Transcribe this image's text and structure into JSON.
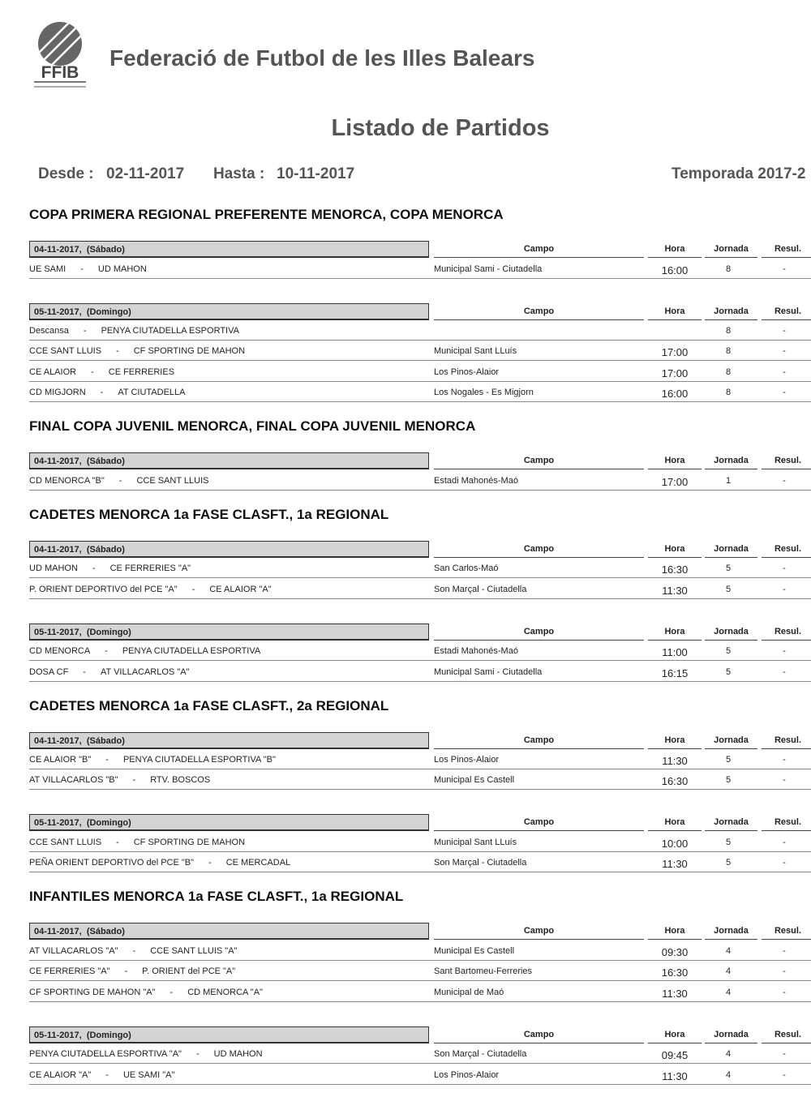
{
  "header": {
    "logo_text": "FFIB",
    "organization": "Federació de Futbol de les Illes Balears",
    "title": "Listado de Partidos",
    "desde_label": "Desde :",
    "desde": "02-11-2017",
    "hasta_label": "Hasta :",
    "hasta": "10-11-2017",
    "temporada": "Temporada 2017-2"
  },
  "columns": {
    "campo": "Campo",
    "hora": "Hora",
    "jornada": "Jornada",
    "resul": "Resul."
  },
  "match_separator": "-",
  "sections": [
    {
      "title": "COPA PRIMERA REGIONAL PREFERENTE MENORCA, COPA MENORCA",
      "days": [
        {
          "date": "04-11-2017,  (Sábado)",
          "matches": [
            {
              "home": "UE SAMI",
              "away": "UD MAHON",
              "campo": "Municipal Sami - Ciutadella",
              "hora": "16:00",
              "jornada": 8,
              "resul": "-"
            }
          ]
        },
        {
          "date": "05-11-2017,  (Domingo)",
          "matches": [
            {
              "home": "Descansa",
              "away": "PENYA CIUTADELLA ESPORTIVA",
              "jornada": 8,
              "resul": "-"
            },
            {
              "home": "CCE SANT LLUIS",
              "away": "CF SPORTING DE MAHON",
              "campo": "Municipal Sant LLuís",
              "hora": "17:00",
              "jornada": 8,
              "resul": "-"
            },
            {
              "home": "CE ALAIOR",
              "away": "CE FERRERIES",
              "campo": "Los Pinos-Alaior",
              "hora": "17:00",
              "jornada": 8,
              "resul": "-"
            },
            {
              "home": "CD MIGJORN",
              "away": "AT CIUTADELLA",
              "campo": "Los Nogales - Es Migjorn",
              "hora": "16:00",
              "jornada": 8,
              "resul": "-"
            }
          ]
        }
      ]
    },
    {
      "title": "FINAL COPA JUVENIL MENORCA, FINAL COPA JUVENIL MENORCA",
      "days": [
        {
          "date": "04-11-2017,  (Sábado)",
          "matches": [
            {
              "home": "CD MENORCA \"B\"",
              "away": "CCE SANT LLUIS",
              "campo": "Estadi Mahonés-Maó",
              "hora": "17:00",
              "jornada": 1,
              "resul": "-"
            }
          ]
        }
      ]
    },
    {
      "title": "CADETES MENORCA 1a FASE CLASFT., 1a REGIONAL",
      "days": [
        {
          "date": "04-11-2017,  (Sábado)",
          "matches": [
            {
              "home": "UD MAHON",
              "away": "CE FERRERIES \"A\"",
              "campo": "San Carlos-Maó",
              "hora": "16:30",
              "jornada": 5,
              "resul": "-"
            },
            {
              "home": "P. ORIENT DEPORTIVO del PCE \"A\"",
              "away": "CE ALAIOR \"A\"",
              "campo": "Son Marçal - Ciutadella",
              "hora": "11:30",
              "jornada": 5,
              "resul": "-"
            }
          ]
        },
        {
          "date": "05-11-2017,  (Domingo)",
          "matches": [
            {
              "home": "CD MENORCA",
              "away": "PENYA CIUTADELLA ESPORTIVA",
              "campo": "Estadi Mahonés-Maó",
              "hora": "11:00",
              "jornada": 5,
              "resul": "-"
            },
            {
              "home": "DOSA CF",
              "away": "AT VILLACARLOS \"A\"",
              "campo": "Municipal Sami - Ciutadella",
              "hora": "16:15",
              "jornada": 5,
              "resul": "-"
            }
          ]
        }
      ]
    },
    {
      "title": "CADETES MENORCA 1a FASE CLASFT., 2a REGIONAL",
      "days": [
        {
          "date": "04-11-2017,  (Sábado)",
          "matches": [
            {
              "home": "CE ALAIOR \"B\"",
              "away": "PENYA CIUTADELLA ESPORTIVA \"B\"",
              "campo": "Los Pinos-Alaior",
              "hora": "11:30",
              "jornada": 5,
              "resul": "-"
            },
            {
              "home": "AT VILLACARLOS \"B\"",
              "away": "RTV. BOSCOS",
              "campo": "Municipal Es Castell",
              "hora": "16:30",
              "jornada": 5,
              "resul": "-"
            }
          ]
        },
        {
          "date": "05-11-2017,  (Domingo)",
          "matches": [
            {
              "home": "CCE SANT LLUIS",
              "away": "CF SPORTING DE MAHON",
              "campo": "Municipal Sant LLuís",
              "hora": "10:00",
              "jornada": 5,
              "resul": "-"
            },
            {
              "home": "PEÑA ORIENT DEPORTIVO del PCE \"B\"",
              "away": "CE MERCADAL",
              "campo": "Son Marçal - Ciutadella",
              "hora": "11:30",
              "jornada": 5,
              "resul": "-"
            }
          ]
        }
      ]
    },
    {
      "title": "INFANTILES MENORCA 1a FASE CLASFT., 1a REGIONAL",
      "days": [
        {
          "date": "04-11-2017,  (Sábado)",
          "matches": [
            {
              "home": "AT VILLACARLOS \"A\"",
              "away": "CCE SANT LLUIS \"A\"",
              "campo": "Municipal Es Castell",
              "hora": "09:30",
              "jornada": 4,
              "resul": "-"
            },
            {
              "home": "CE FERRERIES \"A\"",
              "away": "P. ORIENT del PCE \"A\"",
              "campo": "Sant Bartomeu-Ferreries",
              "hora": "16:30",
              "jornada": 4,
              "resul": "-"
            },
            {
              "home": "CF SPORTING DE MAHON \"A\"",
              "away": "CD MENORCA \"A\"",
              "campo": "Municipal de Maó",
              "hora": "11:30",
              "jornada": 4,
              "resul": "-"
            }
          ]
        },
        {
          "date": "05-11-2017,  (Domingo)",
          "matches": [
            {
              "home": "PENYA CIUTADELLA ESPORTIVA \"A\"",
              "away": "UD MAHON",
              "campo": "Son Marçal - Ciutadella",
              "hora": "09:45",
              "jornada": 4,
              "resul": "-"
            },
            {
              "home": "CE ALAIOR \"A\"",
              "away": "UE SAMI \"A\"",
              "campo": "Los Pinos-Alaior",
              "hora": "11:30",
              "jornada": 4,
              "resul": "-"
            }
          ]
        }
      ]
    }
  ]
}
